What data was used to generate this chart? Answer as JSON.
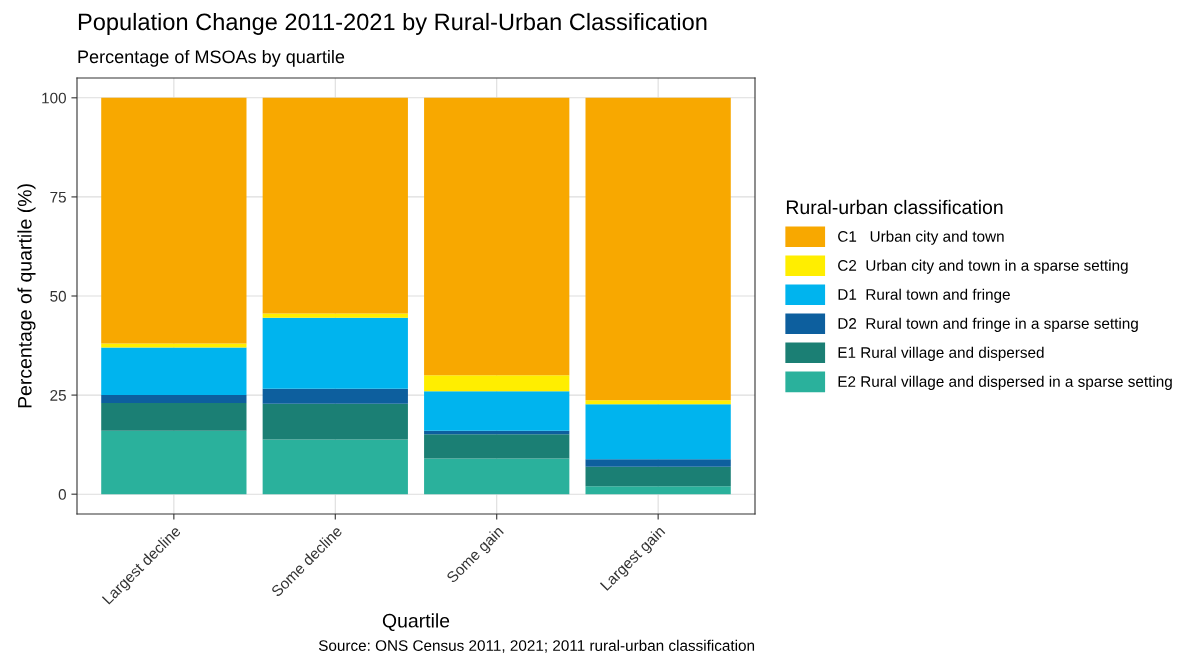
{
  "chart_data": {
    "type": "bar",
    "stacked": true,
    "title": "Population Change 2011-2021 by Rural-Urban Classification",
    "subtitle": "Percentage of MSOAs by quartile",
    "xlabel": "Quartile",
    "ylabel": "Percentage of quartile (%)",
    "legend_title": "Rural-urban classification",
    "categories": [
      "Largest decline",
      "Some decline",
      "Some gain",
      "Largest gain"
    ],
    "series": [
      {
        "name": "E2 Rural village and dispersed in a sparse setting",
        "color": "#2ab19c",
        "values": [
          16,
          13.8,
          9,
          2
        ]
      },
      {
        "name": "E1 Rural village and dispersed",
        "color": "#1b7f74",
        "values": [
          7,
          9,
          6.1,
          4.9
        ]
      },
      {
        "name": "D2  Rural town and fringe in a sparse setting",
        "color": "#0d5f9e",
        "values": [
          2,
          3.8,
          0.9,
          1.9
        ]
      },
      {
        "name": "D1  Rural town and fringe",
        "color": "#00b4ee",
        "values": [
          12,
          17.9,
          10,
          13.9
        ]
      },
      {
        "name": "C2  Urban city and town in a sparse setting",
        "color": "#ffee00",
        "values": [
          1,
          1.1,
          4,
          1
        ]
      },
      {
        "name": "C1   Urban city and town",
        "color": "#f8a800",
        "values": [
          62,
          54.4,
          70,
          76.3
        ]
      }
    ],
    "ylim": [
      -5,
      105
    ],
    "yticks": [
      0,
      25,
      50,
      75,
      100
    ],
    "grid": true,
    "legend": "right",
    "annotations": [
      "Source: ONS Census 2011, 2021; 2011 rural-urban classification"
    ]
  }
}
